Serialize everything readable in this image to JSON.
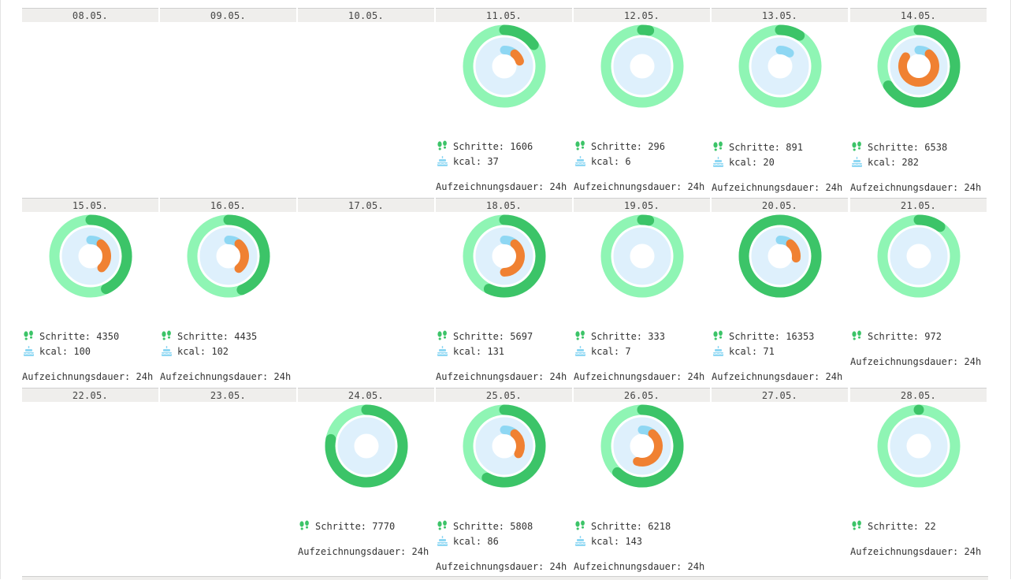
{
  "labels": {
    "steps_label": "Schritte:",
    "kcal_label": "kcal:",
    "duration_label": "Aufzeichnungsdauer:"
  },
  "colors": {
    "steps_track": "#8ff5b4",
    "steps_arc": "#3cc468",
    "inner_track": "#def0fc",
    "kcal_light": "#8ed7f3",
    "kcal_dark": "#f08132",
    "header_bg": "#efeeec"
  },
  "icons": {
    "steps": "footprints-icon",
    "kcal": "cake-icon"
  },
  "rows": [
    {
      "days": [
        {
          "date": "08.05."
        },
        {
          "date": "09.05."
        },
        {
          "date": "10.05."
        },
        {
          "date": "11.05.",
          "steps": "1606",
          "kcal": "37",
          "duration": "24h",
          "steps_progress": 0.15,
          "kcal_progress": 0.2
        },
        {
          "date": "12.05.",
          "steps": "296",
          "kcal": "6",
          "duration": "24h",
          "steps_progress": 0.03,
          "kcal_progress": 0
        },
        {
          "date": "13.05.",
          "steps": "891",
          "kcal": "20",
          "duration": "24h",
          "steps_progress": 0.09,
          "kcal_progress": 0.1
        },
        {
          "date": "14.05.",
          "steps": "6538",
          "kcal": "282",
          "duration": "24h",
          "steps_progress": 0.66,
          "kcal_progress": 0.85
        }
      ]
    },
    {
      "days": [
        {
          "date": "15.05.",
          "steps": "4350",
          "kcal": "100",
          "duration": "24h",
          "steps_progress": 0.43,
          "kcal_progress": 0.38
        },
        {
          "date": "16.05.",
          "steps": "4435",
          "kcal": "102",
          "duration": "24h",
          "steps_progress": 0.44,
          "kcal_progress": 0.39
        },
        {
          "date": "17.05."
        },
        {
          "date": "18.05.",
          "steps": "5697",
          "kcal": "131",
          "duration": "24h",
          "steps_progress": 0.57,
          "kcal_progress": 0.5
        },
        {
          "date": "19.05.",
          "steps": "333",
          "kcal": "7",
          "duration": "24h",
          "steps_progress": 0.03,
          "kcal_progress": 0
        },
        {
          "date": "20.05.",
          "steps": "16353",
          "kcal": "71",
          "duration": "24h",
          "steps_progress": 1.0,
          "kcal_progress": 0.27
        },
        {
          "date": "21.05.",
          "steps": "972",
          "duration": "24h",
          "steps_progress": 0.1
        }
      ]
    },
    {
      "days": [
        {
          "date": "22.05."
        },
        {
          "date": "23.05."
        },
        {
          "date": "24.05.",
          "steps": "7770",
          "duration": "24h",
          "steps_progress": 0.78
        },
        {
          "date": "25.05.",
          "steps": "5808",
          "kcal": "86",
          "duration": "24h",
          "steps_progress": 0.58,
          "kcal_progress": 0.33
        },
        {
          "date": "26.05.",
          "steps": "6218",
          "kcal": "143",
          "duration": "24h",
          "steps_progress": 0.62,
          "kcal_progress": 0.55
        },
        {
          "date": "27.05."
        },
        {
          "date": "28.05.",
          "steps": "22",
          "duration": "24h",
          "steps_progress": 0.0
        }
      ]
    }
  ]
}
